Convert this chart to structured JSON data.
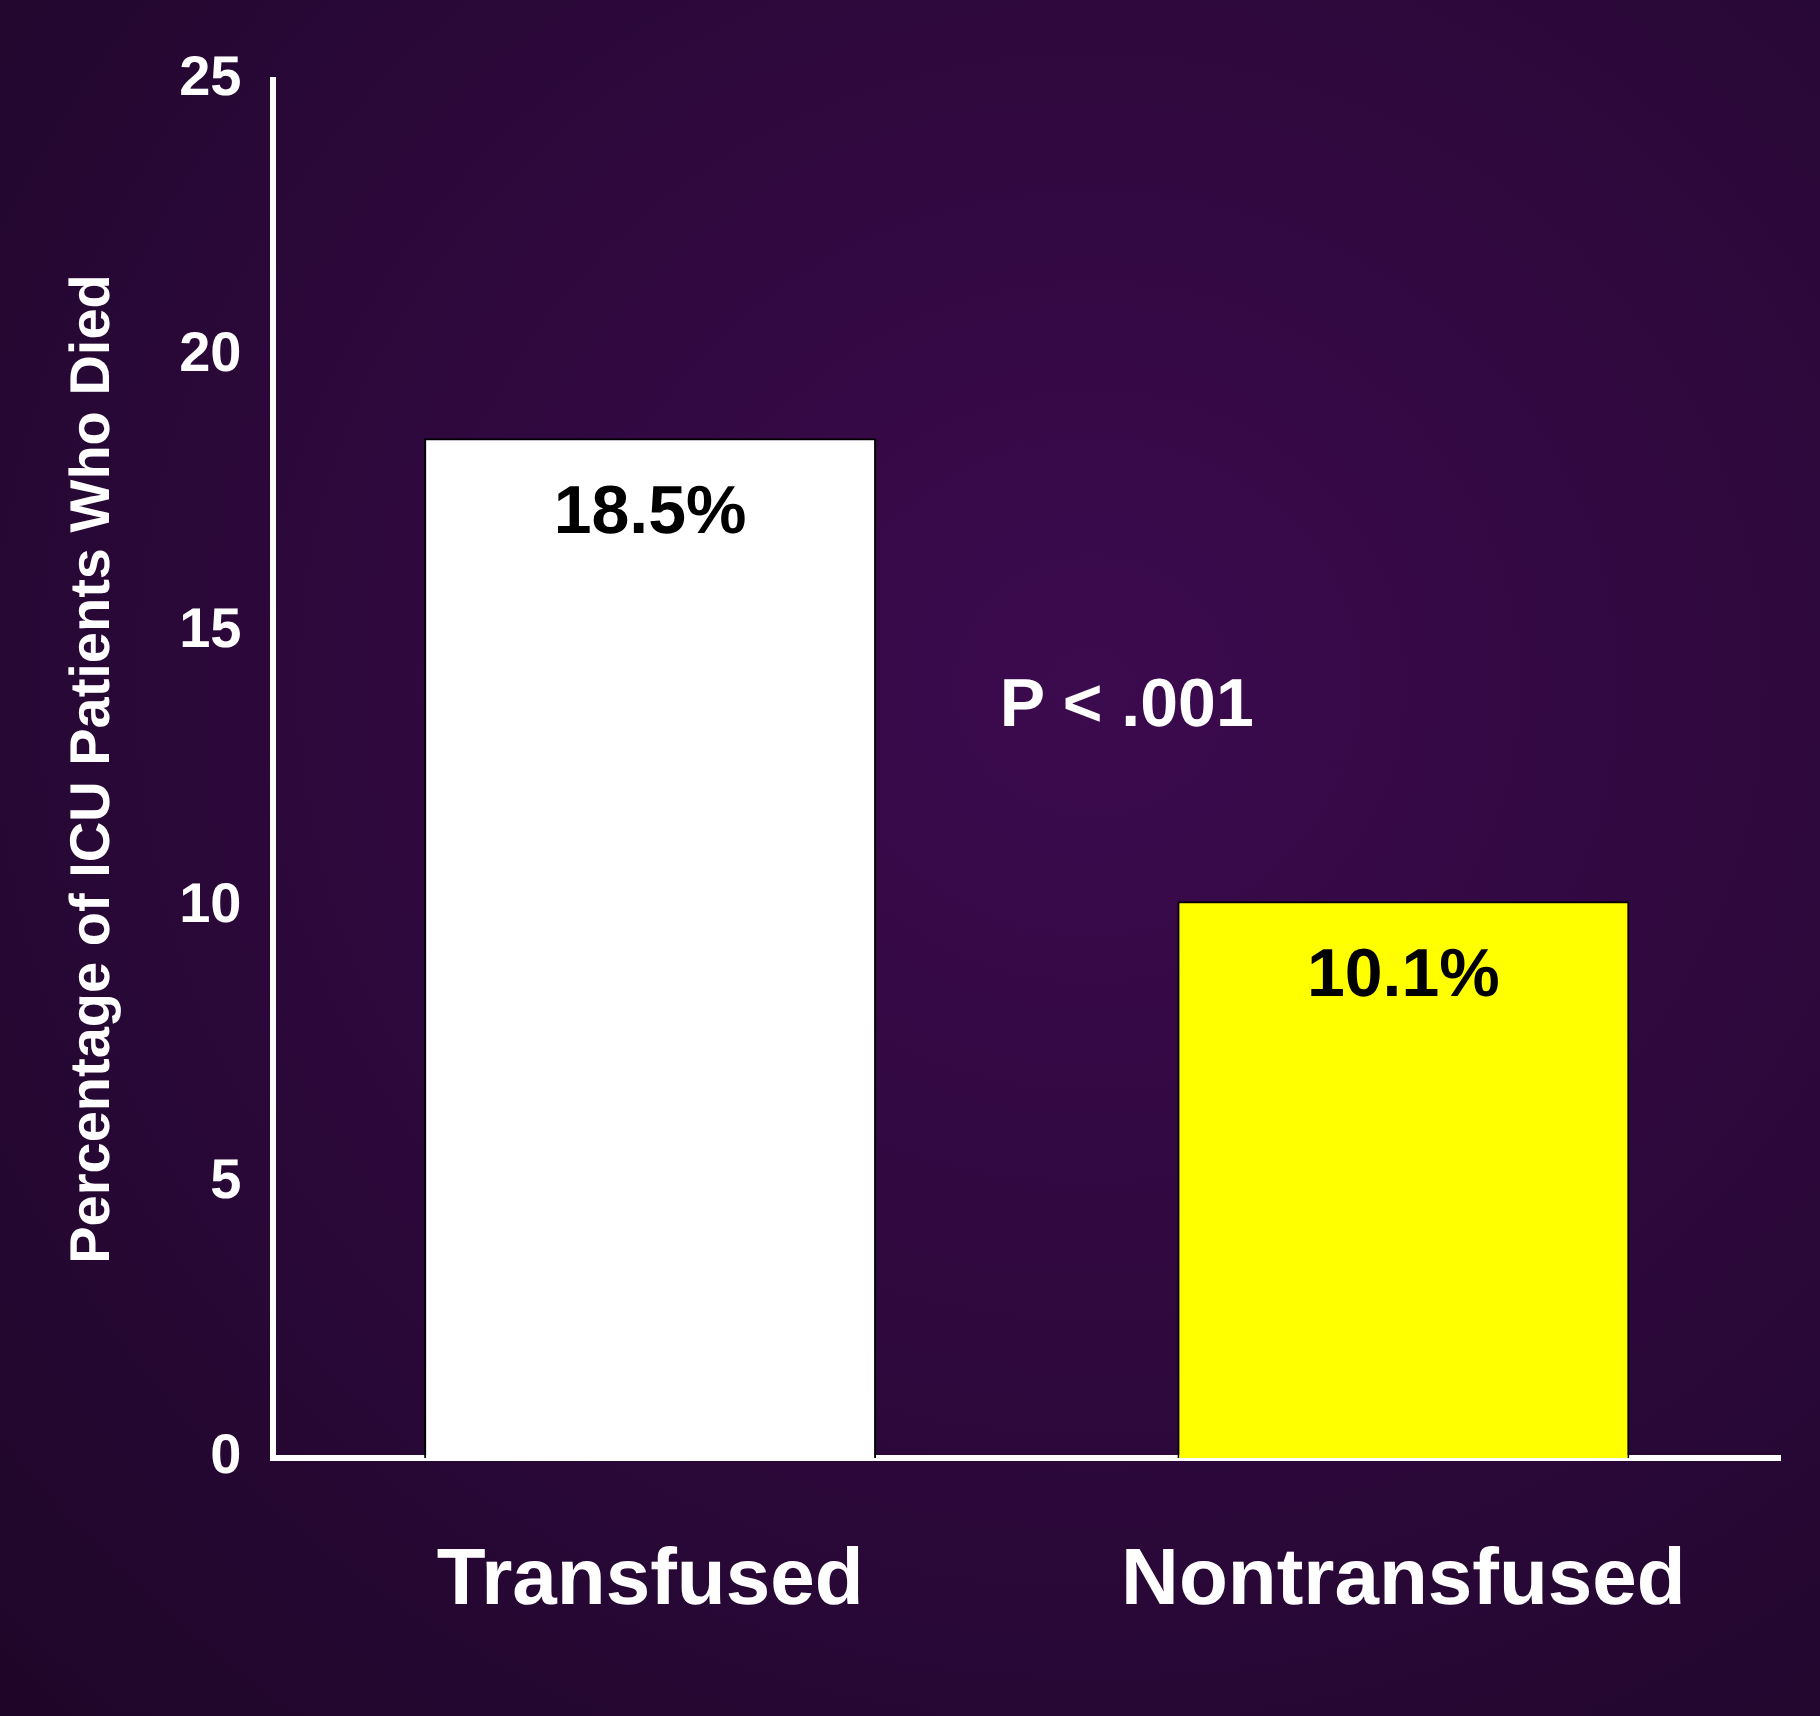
{
  "chart_data": {
    "type": "bar",
    "ylabel": "Percentage of ICU Patients Who Died",
    "categories": [
      "Transfused",
      "Nontransfused"
    ],
    "values": [
      18.5,
      10.1
    ],
    "colors": [
      "#ffffff",
      "#ffff00"
    ],
    "value_labels": [
      "18.5%",
      "10.1%"
    ],
    "ylim": [
      0,
      25
    ],
    "yticks": [
      0,
      5,
      10,
      15,
      20,
      25
    ],
    "grid": false,
    "legend": false,
    "annotations": [
      "P < .001"
    ]
  }
}
